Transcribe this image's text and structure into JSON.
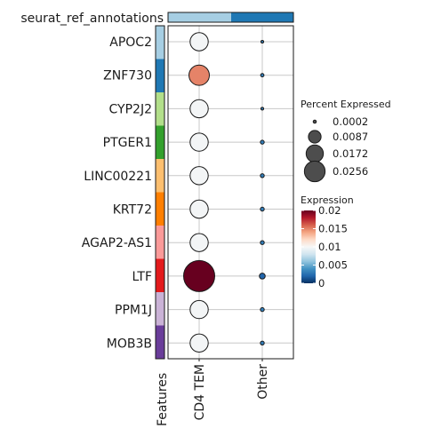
{
  "chart_data": {
    "type": "dotplot",
    "annotation_title": "seurat_ref_annotations",
    "annotation_colors": [
      "#a6cee3",
      "#1f78b4"
    ],
    "x_categories": [
      "CD4 TEM",
      "Other"
    ],
    "features_axis_label": "Features",
    "features": [
      {
        "name": "APOC2",
        "color": "#a6cee3"
      },
      {
        "name": "ZNF730",
        "color": "#1f78b4"
      },
      {
        "name": "CYP2J2",
        "color": "#b2df8a"
      },
      {
        "name": "PTGER1",
        "color": "#33a02c"
      },
      {
        "name": "LINC00221",
        "color": "#fdbf6f"
      },
      {
        "name": "KRT72",
        "color": "#ff7f00"
      },
      {
        "name": "AGAP2-AS1",
        "color": "#fb9a99"
      },
      {
        "name": "LTF",
        "color": "#e31a1c"
      },
      {
        "name": "PPM1J",
        "color": "#cab2d6"
      },
      {
        "name": "MOB3B",
        "color": "#6a3d9a"
      }
    ],
    "points": [
      {
        "feature": "APOC2",
        "group": "CD4 TEM",
        "pct": 0.0087,
        "expr": 0.0098
      },
      {
        "feature": "APOC2",
        "group": "Other",
        "pct": 0.0002,
        "expr": 0.003
      },
      {
        "feature": "ZNF730",
        "group": "CD4 TEM",
        "pct": 0.011,
        "expr": 0.015
      },
      {
        "feature": "ZNF730",
        "group": "Other",
        "pct": 0.0003,
        "expr": 0.003
      },
      {
        "feature": "CYP2J2",
        "group": "CD4 TEM",
        "pct": 0.0087,
        "expr": 0.0098
      },
      {
        "feature": "CYP2J2",
        "group": "Other",
        "pct": 0.0002,
        "expr": 0.003
      },
      {
        "feature": "PTGER1",
        "group": "CD4 TEM",
        "pct": 0.0087,
        "expr": 0.0098
      },
      {
        "feature": "PTGER1",
        "group": "Other",
        "pct": 0.0004,
        "expr": 0.003
      },
      {
        "feature": "LINC00221",
        "group": "CD4 TEM",
        "pct": 0.0087,
        "expr": 0.0098
      },
      {
        "feature": "LINC00221",
        "group": "Other",
        "pct": 0.0004,
        "expr": 0.003
      },
      {
        "feature": "KRT72",
        "group": "CD4 TEM",
        "pct": 0.0087,
        "expr": 0.0098
      },
      {
        "feature": "KRT72",
        "group": "Other",
        "pct": 0.0004,
        "expr": 0.003
      },
      {
        "feature": "AGAP2-AS1",
        "group": "CD4 TEM",
        "pct": 0.0087,
        "expr": 0.0098
      },
      {
        "feature": "AGAP2-AS1",
        "group": "Other",
        "pct": 0.0004,
        "expr": 0.003
      },
      {
        "feature": "LTF",
        "group": "CD4 TEM",
        "pct": 0.0256,
        "expr": 0.02
      },
      {
        "feature": "LTF",
        "group": "Other",
        "pct": 0.0009,
        "expr": 0.002
      },
      {
        "feature": "PPM1J",
        "group": "CD4 TEM",
        "pct": 0.0087,
        "expr": 0.0098
      },
      {
        "feature": "PPM1J",
        "group": "Other",
        "pct": 0.0004,
        "expr": 0.003
      },
      {
        "feature": "MOB3B",
        "group": "CD4 TEM",
        "pct": 0.0087,
        "expr": 0.0098
      },
      {
        "feature": "MOB3B",
        "group": "Other",
        "pct": 0.0004,
        "expr": 0.003
      }
    ],
    "size_legend": {
      "title": "Percent Expressed",
      "values": [
        0.0002,
        0.0087,
        0.0172,
        0.0256
      ],
      "labels": [
        "0.0002",
        "0.0087",
        "0.0172",
        "0.0256"
      ]
    },
    "color_legend": {
      "title": "Expression",
      "range": [
        0,
        0.02
      ],
      "ticks": [
        0,
        0.005,
        0.01,
        0.015,
        0.02
      ],
      "tick_labels": [
        "0",
        "0.005",
        "0.01",
        "0.015",
        "0.02"
      ],
      "palette": [
        "#053061",
        "#2166ac",
        "#4393c3",
        "#92c5de",
        "#d1e5f0",
        "#f7f7f7",
        "#fddbc7",
        "#f4a582",
        "#d6604d",
        "#b2182b",
        "#67001f"
      ]
    },
    "grid": true
  }
}
